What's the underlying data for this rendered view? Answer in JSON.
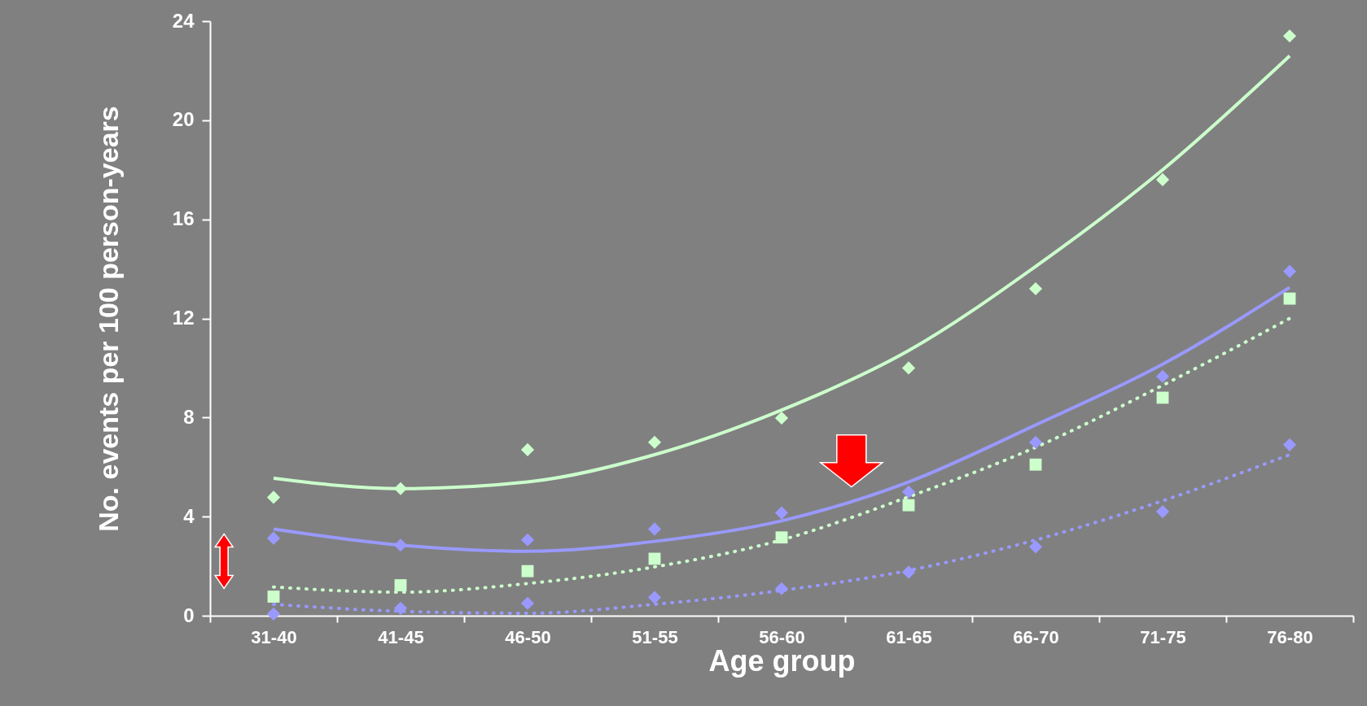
{
  "chart_data": {
    "type": "scatter",
    "xlabel": "Age group",
    "ylabel": "No. events per 100 person-years",
    "categories": [
      "31-40",
      "41-45",
      "46-50",
      "51-55",
      "56-60",
      "61-65",
      "66-70",
      "71-75",
      "76-80"
    ],
    "ylim": [
      0,
      24
    ],
    "yticks": [
      0,
      4,
      8,
      12,
      16,
      20,
      24
    ],
    "grid": false,
    "series": [
      {
        "type": "line",
        "color": "#ccffcc",
        "line_style": "solid",
        "values": [
          5.55,
          5.13,
          5.4,
          6.5,
          8.3,
          10.7,
          14.1,
          18.0,
          22.6
        ]
      },
      {
        "type": "line",
        "color": "#9999ff",
        "line_style": "solid",
        "values": [
          3.5,
          2.85,
          2.6,
          3.0,
          3.83,
          5.4,
          7.7,
          10.15,
          13.25
        ]
      },
      {
        "type": "line",
        "color": "#ccffcc",
        "line_style": "dotted",
        "values": [
          1.16,
          0.95,
          1.3,
          1.97,
          3.06,
          4.8,
          6.8,
          9.3,
          12.0
        ]
      },
      {
        "type": "line",
        "color": "#9999ff",
        "line_style": "dotted",
        "values": [
          0.46,
          0.18,
          0.1,
          0.46,
          1.02,
          1.83,
          3.06,
          4.64,
          6.5
        ]
      },
      {
        "color": "#ccffcc",
        "marker": "diamond",
        "values": [
          4.78,
          5.13,
          6.7,
          7.0,
          7.98,
          10.0,
          13.2,
          17.6,
          23.4
        ]
      },
      {
        "color": "#9999ff",
        "marker": "diamond",
        "values": [
          3.13,
          2.85,
          3.06,
          3.5,
          4.15,
          5.0,
          7.0,
          9.66,
          13.9
        ]
      },
      {
        "color": "#ccffcc",
        "marker": "square",
        "values": [
          0.77,
          1.23,
          1.8,
          2.3,
          3.16,
          4.46,
          6.1,
          8.8,
          12.8
        ]
      },
      {
        "color": "#9999ff",
        "marker": "diamond",
        "values": [
          0.07,
          0.3,
          0.5,
          0.74,
          1.09,
          1.76,
          2.78,
          4.2,
          6.9
        ]
      }
    ]
  }
}
